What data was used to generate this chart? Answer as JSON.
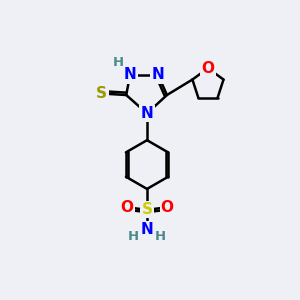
{
  "background_color": "#eef0f5",
  "atom_colors": {
    "N": "#0000ff",
    "O": "#ff0000",
    "S_thiol": "#999900",
    "S_sulfonamide": "#cccc00",
    "H": "#4a8a8a",
    "C": "#000000"
  },
  "bond_color": "#000000",
  "bond_width": 1.8,
  "font_size_atom": 11,
  "font_size_H": 9.5,
  "xlim": [
    0,
    10
  ],
  "ylim": [
    0,
    10
  ]
}
